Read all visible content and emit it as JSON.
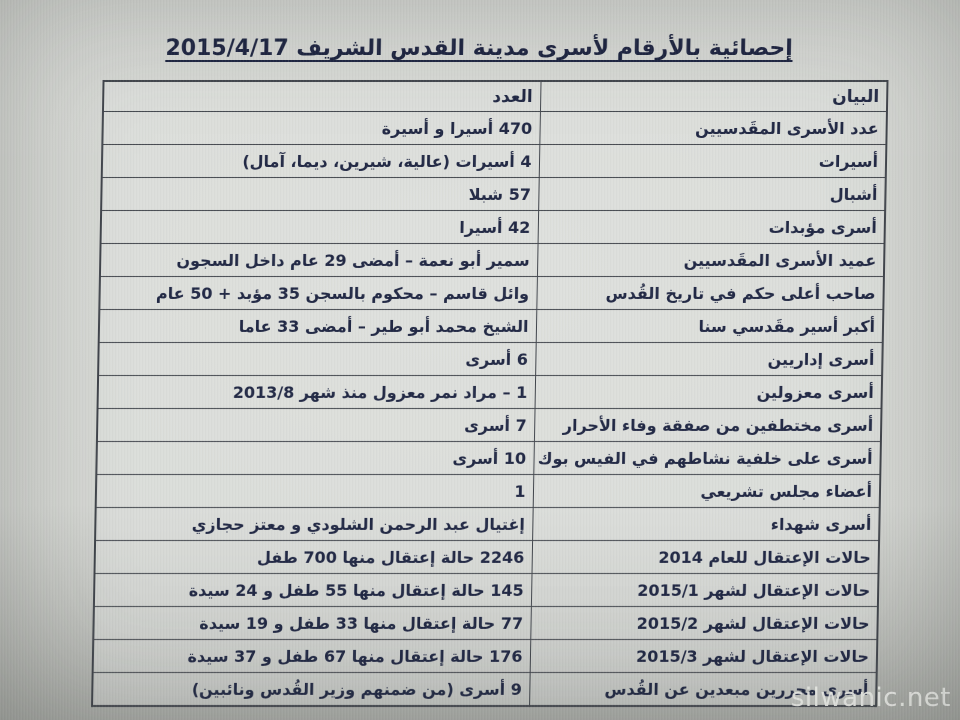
{
  "page": {
    "title": "إحصائية بالأرقام لأسرى مدينة القدس الشريف 2015/4/17",
    "watermark": "silwanic.net"
  },
  "table": {
    "headers": {
      "label": "البيان",
      "value": "العدد"
    },
    "rows": [
      {
        "label": "عدد الأسرى المقَدسيين",
        "value": "470 أسيرا و أسيرة"
      },
      {
        "label": "أسيرات",
        "value": "4 أسيرات (عالية، شيرين، ديما، آمال)"
      },
      {
        "label": "أشبال",
        "value": "57 شبلا"
      },
      {
        "label": "أسرى مؤبدات",
        "value": "42 أسيرا"
      },
      {
        "label": "عميد الأسرى المقَدسيين",
        "value": "سمير أبو نعمة – أمضى 29 عام داخل السجون"
      },
      {
        "label": "صاحب أعلى حكم في تاريخ القُدس",
        "value": "وائل قاسم – محكوم بالسجن 35 مؤبد + 50 عام"
      },
      {
        "label": "أكبر أسير مقَدسي سنا",
        "value": "الشيخ محمد أبو طير – أمضى 33 عاما"
      },
      {
        "label": "أسرى إداريين",
        "value": "6 أسرى"
      },
      {
        "label": "أسرى معزولين",
        "value": "1 – مراد نمر معزول منذ شهر 2013/8"
      },
      {
        "label": "أسرى مختطفين من صفقة وفاء الأحرار",
        "value": "7 أسرى"
      },
      {
        "label": "أسرى على خلفية نشاطهم في الفيس بوك",
        "value": "10 أسرى"
      },
      {
        "label": "أعضاء مجلس تشريعي",
        "value": "1"
      },
      {
        "label": "أسرى شهداء",
        "value": "إغتيال عبد الرحمن الشلودي و معتز حجازي"
      },
      {
        "label": "حالات الإعتقال للعام 2014",
        "value": "2246 حالة إعتقال منها 700 طفل"
      },
      {
        "label": "حالات الإعتقال لشهر 2015/1",
        "value": "145 حالة إعتقال منها 55 طفل و 24 سيدة"
      },
      {
        "label": "حالات الإعتقال لشهر 2015/2",
        "value": "77 حالة إعتقال منها 33 طفل و 19 سيدة"
      },
      {
        "label": "حالات الإعتقال لشهر 2015/3",
        "value": "176 حالة إعتقال منها 67 طفل و 37 سيدة"
      },
      {
        "label": "أسرى محررين مبعدين عن القُدس",
        "value": "9 أسرى (من ضمنهم وزير القُدس ونائبين)"
      }
    ]
  },
  "colors": {
    "text": "#222945",
    "table_border": "#42464d",
    "photo_background": "#d4d6d2",
    "table_background": "#e2e5e2",
    "watermark_text": "#f4f5f1"
  }
}
